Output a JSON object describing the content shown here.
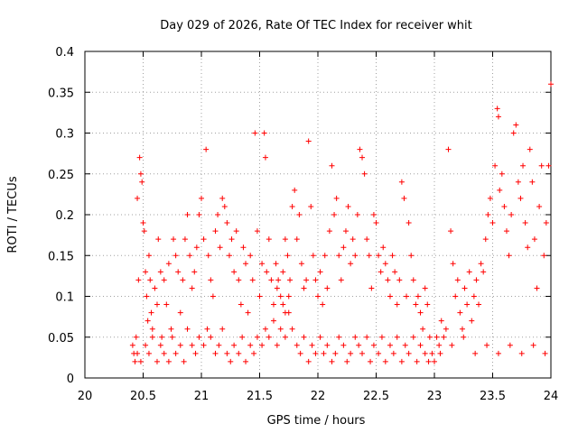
{
  "chart_data": {
    "type": "scatter",
    "title": "Day 029 of 2026, Rate Of TEC Index for receiver whit",
    "xlabel": "GPS time / hours",
    "ylabel": "ROTI / TECUs",
    "xlim": [
      20,
      24
    ],
    "ylim": [
      0,
      0.4
    ],
    "xticks": [
      20,
      20.5,
      21,
      21.5,
      22,
      22.5,
      23,
      23.5,
      24
    ],
    "xtick_labels": [
      "20",
      "20.5",
      "21",
      "21.5",
      "22",
      "22.5",
      "23",
      "23.5",
      "24"
    ],
    "yticks": [
      0,
      0.05,
      0.1,
      0.15,
      0.2,
      0.25,
      0.3,
      0.35,
      0.4
    ],
    "ytick_labels": [
      "0",
      "0.05",
      "0.1",
      "0.15",
      "0.2",
      "0.25",
      "0.3",
      "0.35",
      "0.4"
    ],
    "grid": true,
    "marker": "+",
    "color": "#ff0000",
    "series": [
      {
        "values": [
          [
            20.41,
            0.04
          ],
          [
            20.42,
            0.03
          ],
          [
            20.43,
            0.02
          ],
          [
            20.44,
            0.05
          ],
          [
            20.45,
            0.22
          ],
          [
            20.46,
            0.12
          ],
          [
            20.47,
            0.27
          ],
          [
            20.48,
            0.25
          ],
          [
            20.49,
            0.24
          ],
          [
            20.5,
            0.19
          ],
          [
            20.51,
            0.18
          ],
          [
            20.52,
            0.13
          ],
          [
            20.53,
            0.1
          ],
          [
            20.54,
            0.07
          ],
          [
            20.55,
            0.15
          ],
          [
            20.56,
            0.12
          ],
          [
            20.57,
            0.08
          ],
          [
            20.58,
            0.06
          ],
          [
            20.6,
            0.11
          ],
          [
            20.62,
            0.09
          ],
          [
            20.63,
            0.17
          ],
          [
            20.65,
            0.13
          ],
          [
            20.66,
            0.05
          ],
          [
            20.68,
            0.12
          ],
          [
            20.7,
            0.09
          ],
          [
            20.72,
            0.14
          ],
          [
            20.74,
            0.06
          ],
          [
            20.76,
            0.17
          ],
          [
            20.78,
            0.15
          ],
          [
            20.8,
            0.13
          ],
          [
            20.82,
            0.08
          ],
          [
            20.84,
            0.12
          ],
          [
            20.86,
            0.17
          ],
          [
            20.88,
            0.2
          ],
          [
            20.9,
            0.15
          ],
          [
            20.92,
            0.11
          ],
          [
            20.94,
            0.13
          ],
          [
            20.96,
            0.16
          ],
          [
            20.98,
            0.2
          ],
          [
            21.0,
            0.22
          ],
          [
            21.02,
            0.17
          ],
          [
            21.04,
            0.28
          ],
          [
            21.06,
            0.15
          ],
          [
            21.08,
            0.12
          ],
          [
            21.1,
            0.1
          ],
          [
            21.12,
            0.18
          ],
          [
            21.14,
            0.2
          ],
          [
            21.16,
            0.16
          ],
          [
            21.18,
            0.22
          ],
          [
            21.2,
            0.21
          ],
          [
            21.22,
            0.19
          ],
          [
            21.24,
            0.15
          ],
          [
            21.26,
            0.17
          ],
          [
            21.28,
            0.13
          ],
          [
            21.3,
            0.18
          ],
          [
            21.32,
            0.12
          ],
          [
            21.34,
            0.09
          ],
          [
            21.36,
            0.16
          ],
          [
            21.38,
            0.14
          ],
          [
            21.4,
            0.08
          ],
          [
            21.42,
            0.15
          ],
          [
            21.44,
            0.12
          ],
          [
            21.46,
            0.3
          ],
          [
            21.48,
            0.18
          ],
          [
            21.5,
            0.1
          ],
          [
            21.52,
            0.14
          ],
          [
            21.54,
            0.3
          ],
          [
            21.55,
            0.27
          ],
          [
            21.56,
            0.13
          ],
          [
            21.58,
            0.17
          ],
          [
            21.6,
            0.12
          ],
          [
            21.62,
            0.09
          ],
          [
            21.64,
            0.14
          ],
          [
            21.66,
            0.12
          ],
          [
            21.68,
            0.1
          ],
          [
            21.7,
            0.09
          ],
          [
            21.72,
            0.17
          ],
          [
            21.74,
            0.15
          ],
          [
            21.76,
            0.12
          ],
          [
            21.78,
            0.21
          ],
          [
            21.8,
            0.23
          ],
          [
            21.82,
            0.17
          ],
          [
            21.84,
            0.2
          ],
          [
            21.86,
            0.14
          ],
          [
            21.88,
            0.11
          ],
          [
            21.9,
            0.12
          ],
          [
            21.92,
            0.29
          ],
          [
            21.94,
            0.21
          ],
          [
            21.96,
            0.15
          ],
          [
            21.98,
            0.12
          ],
          [
            22.0,
            0.1
          ],
          [
            22.02,
            0.13
          ],
          [
            22.04,
            0.09
          ],
          [
            22.06,
            0.15
          ],
          [
            22.08,
            0.11
          ],
          [
            22.1,
            0.18
          ],
          [
            22.12,
            0.26
          ],
          [
            22.14,
            0.2
          ],
          [
            22.16,
            0.22
          ],
          [
            22.18,
            0.15
          ],
          [
            22.2,
            0.12
          ],
          [
            22.22,
            0.16
          ],
          [
            22.24,
            0.18
          ],
          [
            22.26,
            0.21
          ],
          [
            22.28,
            0.14
          ],
          [
            22.3,
            0.17
          ],
          [
            22.32,
            0.15
          ],
          [
            22.34,
            0.2
          ],
          [
            22.36,
            0.28
          ],
          [
            22.38,
            0.27
          ],
          [
            22.4,
            0.25
          ],
          [
            22.42,
            0.17
          ],
          [
            22.44,
            0.15
          ],
          [
            22.46,
            0.11
          ],
          [
            22.48,
            0.2
          ],
          [
            22.5,
            0.19
          ],
          [
            22.52,
            0.15
          ],
          [
            22.54,
            0.13
          ],
          [
            22.56,
            0.16
          ],
          [
            22.58,
            0.14
          ],
          [
            22.6,
            0.12
          ],
          [
            22.62,
            0.1
          ],
          [
            22.64,
            0.15
          ],
          [
            22.66,
            0.13
          ],
          [
            22.68,
            0.09
          ],
          [
            22.7,
            0.12
          ],
          [
            22.72,
            0.24
          ],
          [
            22.74,
            0.22
          ],
          [
            22.76,
            0.1
          ],
          [
            22.78,
            0.19
          ],
          [
            22.8,
            0.15
          ],
          [
            22.82,
            0.12
          ],
          [
            22.84,
            0.09
          ],
          [
            22.86,
            0.1
          ],
          [
            22.88,
            0.08
          ],
          [
            22.9,
            0.06
          ],
          [
            22.92,
            0.11
          ],
          [
            22.94,
            0.09
          ],
          [
            22.96,
            0.05
          ],
          [
            22.98,
            0.03
          ],
          [
            23.0,
            0.02
          ],
          [
            23.02,
            0.05
          ],
          [
            23.04,
            0.04
          ],
          [
            23.06,
            0.07
          ],
          [
            23.08,
            0.05
          ],
          [
            23.1,
            0.06
          ],
          [
            23.12,
            0.28
          ],
          [
            23.14,
            0.18
          ],
          [
            23.16,
            0.14
          ],
          [
            23.18,
            0.1
          ],
          [
            23.2,
            0.12
          ],
          [
            23.22,
            0.08
          ],
          [
            23.24,
            0.06
          ],
          [
            23.26,
            0.11
          ],
          [
            23.28,
            0.09
          ],
          [
            23.3,
            0.13
          ],
          [
            23.32,
            0.07
          ],
          [
            23.34,
            0.1
          ],
          [
            23.36,
            0.12
          ],
          [
            23.38,
            0.09
          ],
          [
            23.4,
            0.14
          ],
          [
            23.42,
            0.13
          ],
          [
            23.44,
            0.17
          ],
          [
            23.46,
            0.2
          ],
          [
            23.48,
            0.22
          ],
          [
            23.5,
            0.19
          ],
          [
            23.52,
            0.26
          ],
          [
            23.54,
            0.33
          ],
          [
            23.55,
            0.32
          ],
          [
            23.56,
            0.23
          ],
          [
            23.58,
            0.25
          ],
          [
            23.6,
            0.21
          ],
          [
            23.62,
            0.18
          ],
          [
            23.64,
            0.15
          ],
          [
            23.66,
            0.2
          ],
          [
            23.68,
            0.3
          ],
          [
            23.7,
            0.31
          ],
          [
            23.72,
            0.24
          ],
          [
            23.74,
            0.22
          ],
          [
            23.76,
            0.26
          ],
          [
            23.78,
            0.19
          ],
          [
            23.8,
            0.16
          ],
          [
            23.82,
            0.28
          ],
          [
            23.84,
            0.24
          ],
          [
            23.86,
            0.17
          ],
          [
            23.88,
            0.11
          ],
          [
            23.9,
            0.21
          ],
          [
            23.92,
            0.26
          ],
          [
            23.94,
            0.15
          ],
          [
            23.96,
            0.19
          ],
          [
            23.98,
            0.26
          ],
          [
            24.0,
            0.36
          ],
          [
            20.45,
            0.03
          ],
          [
            20.48,
            0.02
          ],
          [
            20.52,
            0.04
          ],
          [
            20.55,
            0.03
          ],
          [
            20.58,
            0.05
          ],
          [
            20.62,
            0.02
          ],
          [
            20.65,
            0.04
          ],
          [
            20.68,
            0.03
          ],
          [
            20.72,
            0.02
          ],
          [
            20.75,
            0.05
          ],
          [
            20.78,
            0.03
          ],
          [
            20.82,
            0.04
          ],
          [
            20.85,
            0.02
          ],
          [
            20.88,
            0.06
          ],
          [
            20.92,
            0.04
          ],
          [
            20.95,
            0.03
          ],
          [
            20.98,
            0.05
          ],
          [
            21.02,
            0.04
          ],
          [
            21.05,
            0.06
          ],
          [
            21.08,
            0.05
          ],
          [
            21.12,
            0.03
          ],
          [
            21.15,
            0.04
          ],
          [
            21.18,
            0.06
          ],
          [
            21.22,
            0.03
          ],
          [
            21.25,
            0.02
          ],
          [
            21.28,
            0.04
          ],
          [
            21.32,
            0.03
          ],
          [
            21.35,
            0.05
          ],
          [
            21.38,
            0.02
          ],
          [
            21.42,
            0.04
          ],
          [
            21.45,
            0.03
          ],
          [
            21.48,
            0.05
          ],
          [
            21.52,
            0.04
          ],
          [
            21.55,
            0.06
          ],
          [
            21.58,
            0.05
          ],
          [
            21.62,
            0.07
          ],
          [
            21.65,
            0.04
          ],
          [
            21.68,
            0.06
          ],
          [
            21.72,
            0.05
          ],
          [
            21.75,
            0.08
          ],
          [
            21.78,
            0.06
          ],
          [
            21.82,
            0.04
          ],
          [
            21.85,
            0.03
          ],
          [
            21.88,
            0.05
          ],
          [
            21.92,
            0.02
          ],
          [
            21.95,
            0.04
          ],
          [
            21.98,
            0.03
          ],
          [
            22.02,
            0.05
          ],
          [
            22.05,
            0.03
          ],
          [
            22.08,
            0.04
          ],
          [
            22.12,
            0.02
          ],
          [
            22.15,
            0.03
          ],
          [
            22.18,
            0.05
          ],
          [
            22.22,
            0.04
          ],
          [
            22.25,
            0.02
          ],
          [
            22.28,
            0.03
          ],
          [
            22.32,
            0.05
          ],
          [
            22.35,
            0.04
          ],
          [
            22.38,
            0.03
          ],
          [
            22.42,
            0.05
          ],
          [
            22.45,
            0.02
          ],
          [
            22.48,
            0.04
          ],
          [
            22.52,
            0.03
          ],
          [
            22.55,
            0.05
          ],
          [
            22.58,
            0.02
          ],
          [
            22.62,
            0.04
          ],
          [
            22.65,
            0.03
          ],
          [
            22.68,
            0.05
          ],
          [
            22.72,
            0.02
          ],
          [
            22.75,
            0.04
          ],
          [
            22.78,
            0.03
          ],
          [
            22.82,
            0.05
          ],
          [
            22.85,
            0.02
          ],
          [
            22.88,
            0.04
          ],
          [
            22.92,
            0.03
          ],
          [
            22.95,
            0.02
          ],
          [
            23.05,
            0.03
          ],
          [
            23.15,
            0.04
          ],
          [
            23.25,
            0.05
          ],
          [
            23.35,
            0.03
          ],
          [
            23.45,
            0.04
          ],
          [
            23.55,
            0.03
          ],
          [
            23.65,
            0.04
          ],
          [
            23.75,
            0.03
          ],
          [
            23.85,
            0.04
          ],
          [
            23.95,
            0.03
          ],
          [
            21.65,
            0.11
          ],
          [
            21.7,
            0.13
          ],
          [
            21.72,
            0.08
          ],
          [
            21.75,
            0.1
          ]
        ]
      }
    ]
  }
}
